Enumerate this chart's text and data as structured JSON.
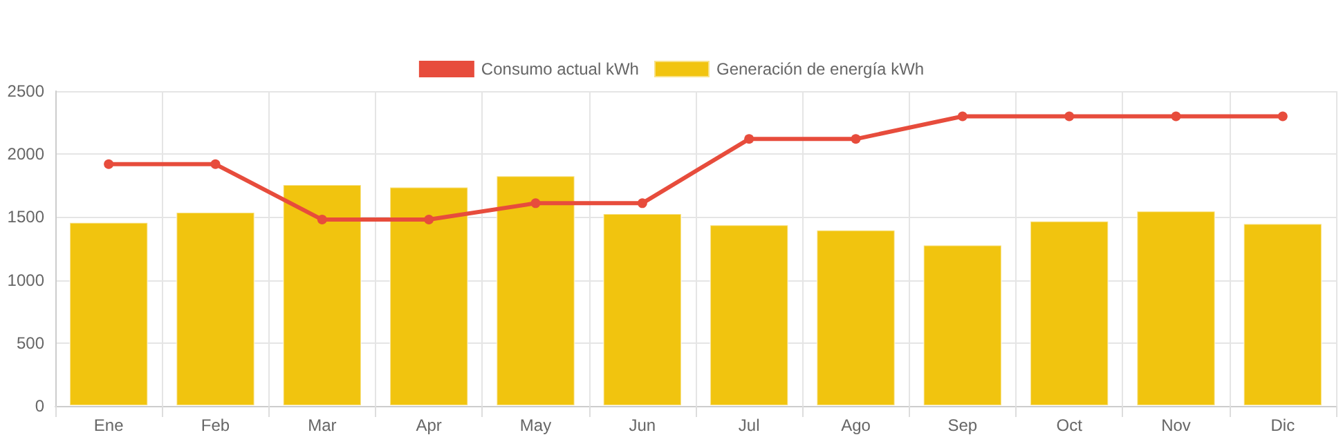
{
  "chart_data": {
    "type": "bar",
    "categories": [
      "Ene",
      "Feb",
      "Mar",
      "Apr",
      "May",
      "Jun",
      "Jul",
      "Ago",
      "Sep",
      "Oct",
      "Nov",
      "Dic"
    ],
    "series": [
      {
        "name": "Consumo actual kWh",
        "type": "line",
        "color": "#e74c3c",
        "values": [
          1920,
          1920,
          1480,
          1480,
          1610,
          1610,
          2120,
          2120,
          2300,
          2300,
          2300,
          2300
        ]
      },
      {
        "name": "Generación de energía kWh",
        "color": "#f1c40f",
        "values": [
          1460,
          1540,
          1760,
          1740,
          1830,
          1530,
          1440,
          1400,
          1280,
          1470,
          1550,
          1450
        ]
      }
    ],
    "ylim": [
      0,
      2500
    ],
    "yticks": [
      0,
      500,
      1000,
      1500,
      2000,
      2500
    ],
    "grid": true,
    "legend": "top",
    "marker": "circle",
    "line_style": "solid"
  }
}
